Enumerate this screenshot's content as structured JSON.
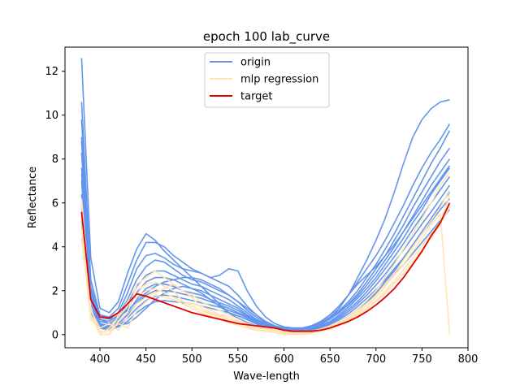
{
  "chart_data": {
    "type": "line",
    "title": "epoch 100 lab_curve",
    "xlabel": "Wave-length",
    "ylabel": "Reflectance",
    "xlim": [
      362,
      800
    ],
    "ylim": [
      -0.6,
      13.1
    ],
    "xticks": [
      400,
      450,
      500,
      550,
      600,
      650,
      700,
      750,
      800
    ],
    "yticks": [
      0,
      2,
      4,
      6,
      8,
      10,
      12
    ],
    "grid": false,
    "legend_placement": "top-center",
    "series_colors": {
      "origin": "#6495ED",
      "mlp regression": "#FFE4B5",
      "target": "#E00000"
    },
    "legend": [
      "origin",
      "mlp regression",
      "target"
    ],
    "wavelengths": [
      380,
      390,
      400,
      410,
      420,
      430,
      440,
      450,
      460,
      470,
      480,
      490,
      500,
      510,
      520,
      530,
      540,
      550,
      560,
      570,
      580,
      590,
      600,
      610,
      620,
      630,
      640,
      650,
      660,
      670,
      680,
      690,
      700,
      710,
      720,
      730,
      740,
      750,
      760,
      770,
      780
    ],
    "series": [
      {
        "name": "target",
        "values": [
          5.6,
          1.6,
          0.8,
          0.75,
          1.0,
          1.4,
          1.85,
          1.75,
          1.6,
          1.45,
          1.3,
          1.15,
          1.0,
          0.9,
          0.8,
          0.7,
          0.6,
          0.5,
          0.45,
          0.4,
          0.35,
          0.3,
          0.2,
          0.15,
          0.15,
          0.15,
          0.2,
          0.3,
          0.45,
          0.6,
          0.8,
          1.05,
          1.35,
          1.7,
          2.1,
          2.6,
          3.2,
          3.8,
          4.5,
          5.1,
          6.0
        ]
      },
      {
        "name": "origin",
        "group": "origin",
        "values": [
          12.6,
          3.5,
          1.2,
          1.0,
          1.5,
          2.8,
          3.9,
          4.6,
          4.3,
          3.8,
          3.4,
          3.0,
          2.6,
          2.2,
          1.8,
          1.4,
          1.0,
          0.7,
          0.5,
          0.4,
          0.3,
          0.25,
          0.2,
          0.2,
          0.2,
          0.3,
          0.5,
          0.8,
          1.2,
          1.8,
          2.6,
          3.4,
          4.3,
          5.3,
          6.5,
          7.8,
          9.0,
          9.8,
          10.3,
          10.6,
          10.7
        ]
      },
      {
        "name": "origin",
        "group": "origin",
        "values": [
          10.6,
          2.5,
          0.9,
          0.8,
          1.2,
          2.3,
          3.4,
          4.2,
          4.2,
          4.0,
          3.6,
          3.3,
          3.0,
          2.8,
          2.6,
          2.7,
          3.0,
          2.9,
          2.0,
          1.3,
          0.8,
          0.5,
          0.35,
          0.3,
          0.3,
          0.4,
          0.6,
          0.9,
          1.3,
          1.8,
          2.4,
          3.0,
          3.6,
          4.3,
          5.1,
          5.9,
          6.8,
          7.6,
          8.3,
          8.9,
          9.6
        ]
      },
      {
        "name": "origin",
        "group": "origin",
        "values": [
          9.8,
          2.2,
          0.8,
          0.7,
          1.0,
          1.9,
          3.0,
          3.6,
          3.7,
          3.5,
          3.2,
          3.0,
          2.9,
          2.8,
          2.6,
          2.4,
          2.2,
          1.8,
          1.3,
          0.9,
          0.6,
          0.4,
          0.3,
          0.3,
          0.3,
          0.4,
          0.55,
          0.8,
          1.1,
          1.5,
          2.0,
          2.6,
          3.2,
          3.9,
          4.6,
          5.4,
          6.2,
          7.0,
          7.8,
          8.5,
          9.3
        ]
      },
      {
        "name": "origin",
        "group": "origin",
        "values": [
          9.0,
          2.0,
          0.7,
          0.6,
          0.9,
          1.6,
          2.5,
          3.1,
          3.4,
          3.3,
          3.0,
          2.7,
          2.5,
          2.4,
          2.2,
          2.0,
          1.8,
          1.5,
          1.1,
          0.8,
          0.55,
          0.4,
          0.3,
          0.25,
          0.25,
          0.35,
          0.5,
          0.75,
          1.05,
          1.4,
          1.85,
          2.4,
          3.0,
          3.6,
          4.3,
          5.0,
          5.8,
          6.5,
          7.2,
          7.9,
          8.5
        ]
      },
      {
        "name": "origin",
        "group": "origin",
        "values": [
          8.3,
          1.8,
          0.6,
          0.5,
          0.8,
          1.4,
          2.2,
          2.7,
          2.9,
          2.9,
          2.7,
          2.5,
          2.3,
          2.2,
          2.0,
          1.8,
          1.6,
          1.3,
          1.0,
          0.7,
          0.5,
          0.35,
          0.25,
          0.2,
          0.2,
          0.3,
          0.45,
          0.7,
          1.0,
          1.35,
          1.75,
          2.25,
          2.8,
          3.4,
          4.0,
          4.7,
          5.4,
          6.1,
          6.8,
          7.4,
          8.0
        ]
      },
      {
        "name": "origin",
        "group": "origin",
        "values": [
          7.6,
          1.6,
          0.5,
          0.4,
          0.7,
          1.2,
          1.9,
          2.4,
          2.6,
          2.6,
          2.5,
          2.3,
          2.1,
          2.0,
          1.8,
          1.6,
          1.4,
          1.2,
          0.9,
          0.65,
          0.45,
          0.3,
          0.2,
          0.15,
          0.2,
          0.25,
          0.4,
          0.6,
          0.9,
          1.25,
          1.65,
          2.1,
          2.6,
          3.2,
          3.8,
          4.4,
          5.1,
          5.7,
          6.4,
          7.0,
          7.6
        ]
      },
      {
        "name": "origin",
        "group": "origin",
        "values": [
          7.0,
          1.4,
          0.45,
          0.35,
          0.6,
          1.0,
          1.6,
          2.1,
          2.3,
          2.3,
          2.2,
          2.0,
          1.9,
          1.8,
          1.6,
          1.45,
          1.3,
          1.1,
          0.85,
          0.6,
          0.4,
          0.28,
          0.18,
          0.12,
          0.15,
          0.22,
          0.35,
          0.55,
          0.82,
          1.15,
          1.5,
          1.95,
          2.45,
          3.0,
          3.55,
          4.15,
          4.8,
          5.4,
          6.0,
          6.6,
          7.2
        ]
      },
      {
        "name": "origin",
        "group": "origin",
        "values": [
          6.4,
          1.2,
          0.4,
          0.3,
          0.5,
          0.9,
          1.4,
          1.8,
          2.0,
          2.0,
          1.95,
          1.85,
          1.75,
          1.65,
          1.5,
          1.35,
          1.2,
          1.0,
          0.8,
          0.55,
          0.38,
          0.25,
          0.15,
          0.1,
          0.12,
          0.2,
          0.32,
          0.5,
          0.75,
          1.05,
          1.4,
          1.8,
          2.25,
          2.75,
          3.3,
          3.85,
          4.45,
          5.05,
          5.6,
          6.2,
          6.8
        ]
      },
      {
        "name": "origin",
        "group": "origin",
        "values": [
          5.8,
          1.1,
          0.35,
          0.25,
          0.4,
          0.75,
          1.2,
          1.55,
          1.75,
          1.8,
          1.75,
          1.65,
          1.55,
          1.45,
          1.35,
          1.25,
          1.1,
          0.95,
          0.75,
          0.5,
          0.35,
          0.22,
          0.12,
          0.08,
          0.1,
          0.18,
          0.3,
          0.45,
          0.68,
          0.95,
          1.28,
          1.65,
          2.05,
          2.5,
          3.0,
          3.5,
          4.05,
          4.6,
          5.15,
          5.7,
          6.2
        ]
      },
      {
        "name": "origin",
        "group": "origin",
        "values": [
          5.2,
          1.0,
          0.3,
          0.2,
          0.35,
          0.6,
          1.0,
          1.3,
          1.5,
          1.55,
          1.5,
          1.45,
          1.4,
          1.3,
          1.2,
          1.1,
          1.0,
          0.85,
          0.68,
          0.48,
          0.32,
          0.2,
          0.1,
          0.06,
          0.08,
          0.15,
          0.26,
          0.4,
          0.6,
          0.85,
          1.15,
          1.5,
          1.85,
          2.3,
          2.75,
          3.2,
          3.7,
          4.2,
          4.7,
          5.2,
          5.7
        ]
      },
      {
        "name": "origin",
        "group": "origin",
        "values": [
          8.8,
          2.1,
          0.9,
          0.7,
          0.8,
          1.1,
          1.5,
          1.9,
          2.2,
          2.4,
          2.5,
          2.6,
          2.6,
          2.5,
          2.3,
          2.1,
          1.8,
          1.5,
          1.2,
          0.9,
          0.6,
          0.4,
          0.25,
          0.2,
          0.25,
          0.4,
          0.6,
          0.9,
          1.3,
          1.8,
          2.3,
          2.7,
          3.1,
          3.6,
          4.1,
          4.7,
          5.3,
          5.9,
          6.5,
          7.1,
          7.7
        ]
      },
      {
        "name": "origin",
        "group": "origin",
        "values": [
          7.3,
          1.7,
          0.7,
          0.5,
          0.45,
          0.5,
          0.8,
          1.2,
          1.6,
          1.9,
          2.1,
          2.2,
          2.1,
          1.9,
          1.6,
          1.3,
          1.0,
          0.75,
          0.55,
          0.4,
          0.3,
          0.2,
          0.12,
          0.08,
          0.1,
          0.15,
          0.25,
          0.4,
          0.6,
          0.85,
          1.15,
          1.5,
          1.9,
          2.4,
          2.9,
          3.5,
          4.1,
          4.7,
          5.3,
          5.9,
          6.5
        ]
      },
      {
        "name": "mlp regression",
        "group": "mlp regression",
        "values": [
          6.2,
          1.2,
          0.0,
          0.0,
          0.6,
          1.0,
          2.3,
          2.6,
          2.9,
          2.6,
          2.3,
          2.0,
          1.8,
          1.5,
          1.3,
          1.1,
          0.9,
          0.7,
          0.5,
          0.4,
          0.3,
          0.25,
          0.15,
          0.05,
          0.1,
          0.15,
          0.25,
          0.4,
          0.6,
          0.85,
          1.15,
          1.55,
          2.0,
          2.6,
          3.2,
          3.9,
          4.6,
          5.3,
          6.0,
          6.8,
          7.4
        ]
      },
      {
        "name": "mlp regression",
        "group": "mlp regression",
        "values": [
          5.4,
          0.9,
          0.0,
          0.3,
          0.8,
          1.3,
          2.0,
          2.3,
          2.4,
          2.2,
          2.0,
          1.5,
          1.4,
          1.3,
          1.1,
          0.9,
          0.8,
          0.6,
          0.45,
          0.35,
          0.25,
          0.2,
          0.1,
          0.0,
          0.05,
          0.1,
          0.2,
          0.3,
          0.5,
          0.7,
          1.0,
          1.3,
          1.7,
          2.2,
          2.7,
          3.2,
          3.8,
          4.4,
          5.0,
          5.5,
          0.0
        ]
      },
      {
        "name": "mlp regression",
        "group": "mlp regression",
        "values": [
          4.8,
          0.7,
          0.2,
          0.0,
          0.9,
          1.5,
          1.7,
          2.0,
          2.1,
          1.9,
          1.7,
          1.5,
          1.3,
          1.1,
          0.95,
          0.8,
          0.65,
          0.5,
          0.35,
          0.25,
          0.15,
          0.1,
          0.05,
          0.0,
          0.0,
          0.05,
          0.15,
          0.25,
          0.4,
          0.6,
          0.85,
          1.15,
          1.5,
          1.9,
          2.35,
          2.8,
          3.3,
          3.9,
          4.4,
          5.0,
          6.4
        ]
      },
      {
        "name": "mlp regression",
        "group": "mlp regression",
        "values": [
          5.9,
          1.1,
          0.3,
          0.5,
          0.2,
          0.8,
          1.4,
          1.7,
          1.9,
          2.1,
          2.3,
          2.0,
          1.7,
          1.2,
          1.0,
          0.85,
          0.7,
          0.55,
          0.4,
          0.3,
          0.22,
          0.18,
          0.12,
          0.08,
          0.1,
          0.12,
          0.22,
          0.35,
          0.55,
          0.75,
          1.05,
          1.4,
          1.8,
          2.3,
          2.8,
          3.4,
          4.0,
          4.6,
          5.2,
          5.8,
          6.6
        ]
      },
      {
        "name": "mlp regression",
        "group": "mlp regression",
        "values": [
          4.4,
          0.8,
          0.1,
          0.2,
          0.5,
          0.3,
          1.1,
          1.5,
          1.8,
          1.7,
          1.6,
          1.4,
          1.2,
          1.0,
          0.85,
          0.7,
          0.55,
          0.42,
          0.3,
          0.2,
          0.15,
          0.1,
          0.0,
          0.0,
          0.05,
          0.08,
          0.18,
          0.3,
          0.45,
          0.65,
          0.92,
          1.2,
          1.55,
          2.0,
          2.45,
          2.95,
          3.5,
          4.05,
          4.6,
          5.1,
          5.8
        ]
      }
    ]
  }
}
